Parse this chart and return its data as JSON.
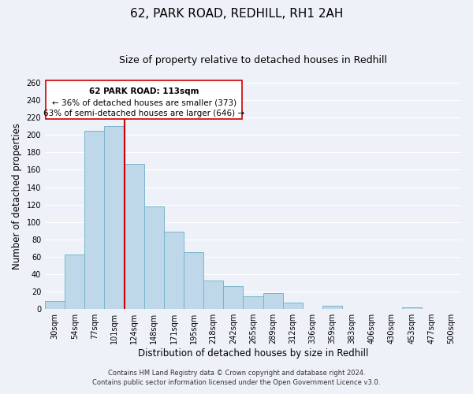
{
  "title": "62, PARK ROAD, REDHILL, RH1 2AH",
  "subtitle": "Size of property relative to detached houses in Redhill",
  "xlabel": "Distribution of detached houses by size in Redhill",
  "ylabel": "Number of detached properties",
  "bar_color": "#bed8ea",
  "bar_edge_color": "#7ab4cc",
  "categories": [
    "30sqm",
    "54sqm",
    "77sqm",
    "101sqm",
    "124sqm",
    "148sqm",
    "171sqm",
    "195sqm",
    "218sqm",
    "242sqm",
    "265sqm",
    "289sqm",
    "312sqm",
    "336sqm",
    "359sqm",
    "383sqm",
    "406sqm",
    "430sqm",
    "453sqm",
    "477sqm",
    "500sqm"
  ],
  "values": [
    9,
    63,
    205,
    210,
    167,
    118,
    89,
    65,
    33,
    26,
    15,
    18,
    7,
    0,
    4,
    0,
    0,
    0,
    2,
    0,
    0
  ],
  "vline_color": "#cc0000",
  "vline_bar_index": 3.5,
  "annotation_text_line1": "62 PARK ROAD: 113sqm",
  "annotation_text_line2": "← 36% of detached houses are smaller (373)",
  "annotation_text_line3": "63% of semi-detached houses are larger (646) →",
  "ylim_max": 260,
  "yticks": [
    0,
    20,
    40,
    60,
    80,
    100,
    120,
    140,
    160,
    180,
    200,
    220,
    240,
    260
  ],
  "footer_line1": "Contains HM Land Registry data © Crown copyright and database right 2024.",
  "footer_line2": "Contains public sector information licensed under the Open Government Licence v3.0.",
  "bg_color": "#eef2f8",
  "grid_color": "#ffffff",
  "title_fontsize": 11,
  "subtitle_fontsize": 9,
  "axis_label_fontsize": 8.5,
  "tick_fontsize": 7,
  "annotation_fontsize": 7.5,
  "footer_fontsize": 6
}
